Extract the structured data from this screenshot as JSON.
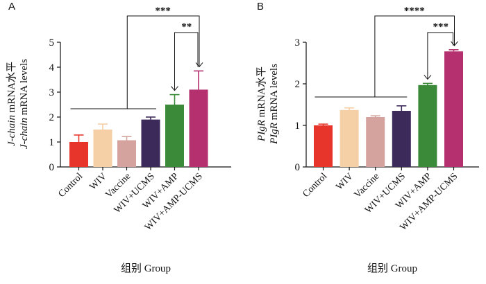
{
  "chart_data": [
    {
      "type": "bar",
      "panel": "A",
      "ylabel_lines": [
        "J-chain mRNA水平",
        "J-chain mRNA levels"
      ],
      "xlabel": "组别 Group",
      "categories": [
        "Control",
        "WIV",
        "Vaccine",
        "WIV+UCMS",
        "WIV+AMP",
        "WIV+AMP-UCMS"
      ],
      "values": [
        1.0,
        1.5,
        1.07,
        1.9,
        2.5,
        3.1
      ],
      "errors": [
        0.28,
        0.22,
        0.15,
        0.1,
        0.4,
        0.75
      ],
      "colors": [
        "#e8352b",
        "#f5cfa5",
        "#d4a39e",
        "#3b2a5a",
        "#3b8a3a",
        "#b5306f"
      ],
      "ylim": [
        0,
        5
      ],
      "yticks": [
        0,
        1,
        2,
        3,
        4,
        5
      ],
      "significance": [
        {
          "label": "***",
          "group_from": 0,
          "group_to": 3,
          "target": 5
        },
        {
          "label": "**",
          "from": 4,
          "to": 5
        }
      ]
    },
    {
      "type": "bar",
      "panel": "B",
      "ylabel_lines": [
        "PIgR mRNA水平",
        "PIgR mRNA levels"
      ],
      "xlabel": "组别 Group",
      "categories": [
        "Control",
        "WIV",
        "Vaccine",
        "WIV+UCMS",
        "WIV+AMP",
        "WIV+AMP-UCMS"
      ],
      "values": [
        1.0,
        1.37,
        1.2,
        1.35,
        1.97,
        2.78
      ],
      "errors": [
        0.03,
        0.05,
        0.03,
        0.12,
        0.04,
        0.04
      ],
      "colors": [
        "#e8352b",
        "#f5cfa5",
        "#d4a39e",
        "#3b2a5a",
        "#3b8a3a",
        "#b5306f"
      ],
      "ylim": [
        0,
        3
      ],
      "yticks": [
        0,
        1,
        2,
        3
      ],
      "significance": [
        {
          "label": "****",
          "group_from": 0,
          "group_to": 3,
          "target": 5
        },
        {
          "label": "***",
          "from": 4,
          "to": 5
        }
      ]
    }
  ]
}
